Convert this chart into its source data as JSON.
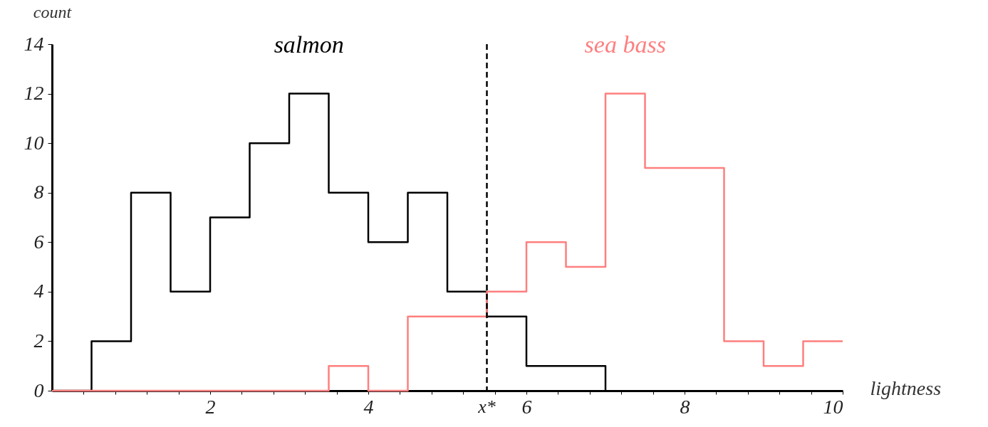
{
  "chart_data": {
    "type": "step",
    "xlabel": "lightness",
    "ylabel": "count",
    "xlim": [
      0,
      10
    ],
    "ylim": [
      0,
      14
    ],
    "xticks": [
      {
        "value": 0.4,
        "label": null
      },
      {
        "value": 0.8,
        "label": null
      },
      {
        "value": 1.2,
        "label": null
      },
      {
        "value": 1.6,
        "label": null
      },
      2,
      {
        "value": 2.4,
        "label": null
      },
      {
        "value": 2.8,
        "label": null
      },
      {
        "value": 3.2,
        "label": null
      },
      {
        "value": 3.6,
        "label": null
      },
      4,
      {
        "value": 4.4,
        "label": null
      },
      {
        "value": 4.8,
        "label": null
      },
      {
        "value": 5.2,
        "label": null
      },
      {
        "value": 5.6,
        "label": null
      },
      6,
      {
        "value": 6.4,
        "label": null
      },
      {
        "value": 6.8,
        "label": null
      },
      {
        "value": 7.2,
        "label": null
      },
      {
        "value": 7.6,
        "label": null
      },
      8,
      {
        "value": 8.4,
        "label": null
      },
      {
        "value": 8.8,
        "label": null
      },
      {
        "value": 9.2,
        "label": null
      },
      {
        "value": 9.6,
        "label": null
      },
      10
    ],
    "yticks": [
      0,
      2,
      4,
      6,
      8,
      10,
      12,
      14
    ],
    "grid": false,
    "series": [
      {
        "name": "salmon",
        "color": "#000000",
        "x": [
          0,
          0.5,
          1,
          1.5,
          2,
          2.5,
          3,
          3.5,
          4,
          4.5,
          5,
          5.5,
          6,
          6.5,
          7
        ],
        "values": [
          0,
          2,
          8,
          4,
          7,
          10,
          12,
          8,
          6,
          8,
          4,
          3,
          1,
          1,
          0
        ]
      },
      {
        "name": "sea bass",
        "color": "#ff7f7f",
        "x": [
          0,
          3.5,
          4,
          4.5,
          5.5,
          6,
          6.5,
          7,
          7.5,
          8.5,
          9,
          9.5,
          10
        ],
        "values": [
          0,
          1,
          0,
          3,
          4,
          6,
          5,
          12,
          9,
          2,
          1,
          2,
          2
        ]
      }
    ],
    "ref_lines": [
      {
        "axis": "x",
        "value": 5.5,
        "label": "x*",
        "color": "#000000",
        "line_style": "dashed"
      }
    ]
  }
}
